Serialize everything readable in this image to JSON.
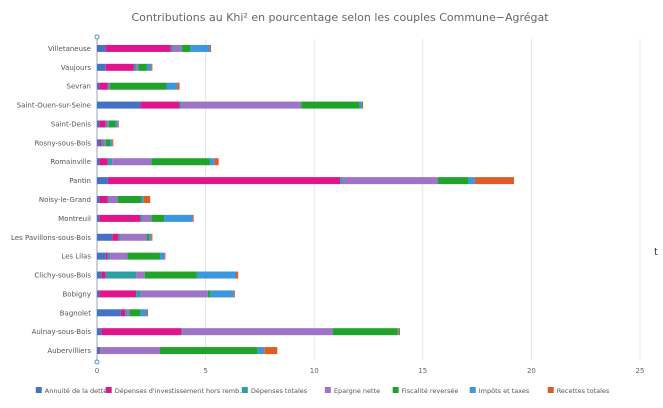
{
  "stray_text": "t",
  "chart_data": {
    "type": "bar",
    "orientation": "horizontal",
    "stacked": true,
    "title": "Contributions au Khi² en pourcentage selon les couples Commune−Agrégat",
    "xlabel": "",
    "ylabel": "",
    "xlim": [
      0,
      25
    ],
    "xticks": [
      0,
      5,
      10,
      15,
      20,
      25
    ],
    "grid": true,
    "legend_position": "bottom",
    "categories": [
      "Villetaneuse",
      "Vaujours",
      "Sevran",
      "Saint-Ouen-sur-Seine",
      "Saint-Denis",
      "Rosny-sous-Bois",
      "Romainville",
      "Pantin",
      "Noisy-le-Grand",
      "Montreuil",
      "Les Pavillons-sous-Bois",
      "Les Lilas",
      "Clichy-sous-Bois",
      "Bobigny",
      "Bagnolet",
      "Aulnay-sous-Bois",
      "Aubervilliers"
    ],
    "series": [
      {
        "name": "Annuité de la dette",
        "color": "#4472c4",
        "values": [
          0.4,
          0.4,
          0.1,
          2.0,
          0.1,
          0.1,
          0.1,
          0.5,
          0.1,
          0.1,
          0.7,
          0.4,
          0.2,
          0.1,
          1.1,
          0.2,
          0.1
        ]
      },
      {
        "name": "Dépenses d'investissement hors remb.",
        "color": "#e0158b",
        "values": [
          3.0,
          1.3,
          0.4,
          1.8,
          0.3,
          0.1,
          0.4,
          10.7,
          0.4,
          1.9,
          0.3,
          0.1,
          0.2,
          1.7,
          0.2,
          3.7,
          0.05
        ]
      },
      {
        "name": "Dépenses totales",
        "color": "#2e9fa3",
        "values": [
          0.1,
          0.1,
          0.05,
          0.1,
          0.1,
          0.1,
          0.2,
          0.1,
          0.05,
          0.1,
          0.1,
          0.1,
          1.4,
          0.2,
          0.1,
          0.05,
          0.05
        ]
      },
      {
        "name": "Epargne nette",
        "color": "#9e74c8",
        "values": [
          0.4,
          0.1,
          0.05,
          5.5,
          0.05,
          0.1,
          1.8,
          4.4,
          0.4,
          0.4,
          1.2,
          0.8,
          0.4,
          3.1,
          0.1,
          6.9,
          2.7
        ]
      },
      {
        "name": "Fiscalité reversée",
        "color": "#21a32b",
        "values": [
          0.4,
          0.4,
          2.6,
          2.7,
          0.3,
          0.2,
          2.7,
          1.4,
          1.1,
          0.6,
          0.1,
          1.5,
          2.4,
          0.1,
          0.5,
          3.0,
          4.5
        ]
      },
      {
        "name": "Impôts et taxes",
        "color": "#3c97dc",
        "values": [
          0.9,
          0.2,
          0.5,
          0.1,
          0.1,
          0.1,
          0.2,
          0.3,
          0.1,
          1.3,
          0.1,
          0.2,
          1.8,
          1.1,
          0.3,
          0.05,
          0.3
        ]
      },
      {
        "name": "Recettes totales",
        "color": "#e05a24",
        "values": [
          0.05,
          0.05,
          0.1,
          0.05,
          0.05,
          0.05,
          0.2,
          1.8,
          0.3,
          0.05,
          0.05,
          0.05,
          0.1,
          0.05,
          0.05,
          0.05,
          0.6
        ]
      }
    ]
  }
}
